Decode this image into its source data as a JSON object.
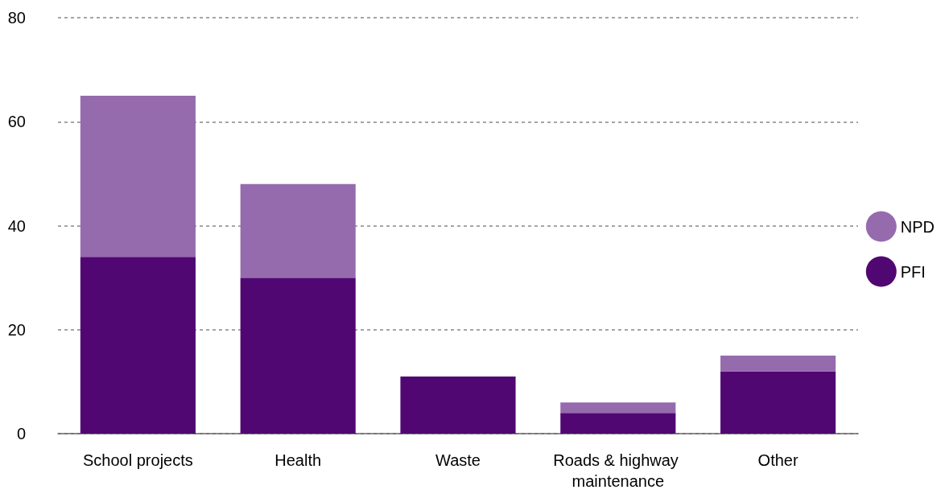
{
  "chart_data": {
    "type": "bar",
    "stacked": true,
    "categories": [
      "School projects",
      "Health",
      "Waste",
      "Roads & highway maintenance",
      "Other"
    ],
    "series": [
      {
        "name": "PFI",
        "color": "#510772",
        "values": [
          34,
          30,
          11,
          4,
          12
        ]
      },
      {
        "name": "NPD",
        "color": "#966bae",
        "values": [
          31,
          18,
          0,
          2,
          3
        ]
      }
    ],
    "ylim": [
      0,
      80
    ],
    "yticks": [
      0,
      20,
      40,
      60,
      80
    ],
    "grid": "y",
    "legend": "right"
  }
}
